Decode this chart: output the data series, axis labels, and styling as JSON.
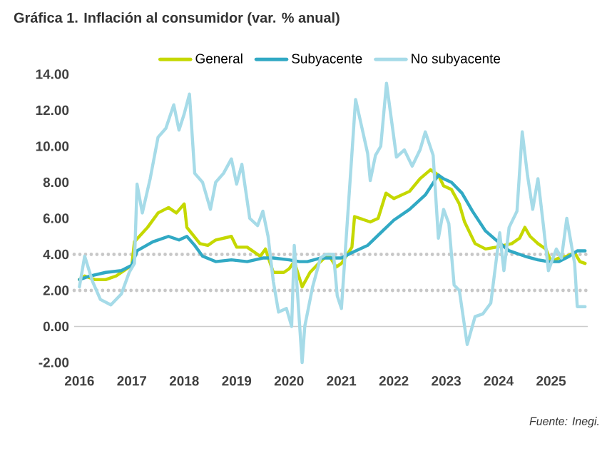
{
  "chart_data": {
    "type": "line",
    "title": "Gráfica 1. Inflación al consumidor (var. % anual)",
    "annotations": [
      "Fuente: Inegi."
    ],
    "legend": "top",
    "xlim": [
      2015.9,
      2025.7
    ],
    "xticks": [
      2016,
      2017,
      2018,
      2019,
      2020,
      2021,
      2022,
      2023,
      2024,
      2025
    ],
    "ylim": [
      -2,
      14
    ],
    "yticks": [
      {
        "value": -2,
        "label": "-2.00"
      },
      {
        "value": 0,
        "label": "0.00"
      },
      {
        "value": 2,
        "label": "2.00"
      },
      {
        "value": 4,
        "label": "4.00"
      },
      {
        "value": 6,
        "label": "6.00"
      },
      {
        "value": 8,
        "label": "8.00"
      },
      {
        "value": 10,
        "label": "10.00"
      },
      {
        "value": 12,
        "label": "12.00"
      },
      {
        "value": 14,
        "label": "14.00"
      }
    ],
    "ref_lines": [
      {
        "axis": "y",
        "value": 4,
        "color": "#c8c8c8",
        "line_style": "dotted"
      },
      {
        "axis": "y",
        "value": 2,
        "color": "#c8c8c8",
        "line_style": "dotted"
      }
    ],
    "series": [
      {
        "name": "General",
        "color": "#c5d800",
        "x": [
          2016.0,
          2016.1,
          2016.3,
          2016.5,
          2016.7,
          2016.9,
          2017.0,
          2017.05,
          2017.3,
          2017.5,
          2017.7,
          2017.85,
          2018.0,
          2018.05,
          2018.3,
          2018.45,
          2018.6,
          2018.9,
          2019.0,
          2019.2,
          2019.45,
          2019.55,
          2019.7,
          2019.9,
          2020.0,
          2020.1,
          2020.25,
          2020.4,
          2020.6,
          2020.75,
          2020.9,
          2021.0,
          2021.2,
          2021.25,
          2021.45,
          2021.55,
          2021.7,
          2021.85,
          2022.0,
          2022.3,
          2022.5,
          2022.7,
          2022.85,
          2022.95,
          2023.1,
          2023.25,
          2023.35,
          2023.55,
          2023.75,
          2023.95,
          2024.1,
          2024.25,
          2024.4,
          2024.5,
          2024.6,
          2024.75,
          2024.9,
          2025.0,
          2025.15,
          2025.3,
          2025.45,
          2025.55,
          2025.65
        ],
        "values": [
          2.6,
          2.8,
          2.6,
          2.6,
          2.8,
          3.2,
          3.4,
          4.7,
          5.5,
          6.3,
          6.6,
          6.3,
          6.8,
          5.5,
          4.6,
          4.5,
          4.8,
          5.0,
          4.4,
          4.4,
          3.9,
          4.3,
          3.0,
          3.0,
          3.2,
          3.6,
          2.2,
          3.0,
          3.6,
          4.0,
          3.3,
          3.5,
          4.4,
          6.1,
          5.9,
          5.8,
          6.0,
          7.4,
          7.1,
          7.5,
          8.2,
          8.7,
          8.4,
          7.8,
          7.6,
          6.8,
          5.8,
          4.6,
          4.3,
          4.4,
          4.5,
          4.6,
          4.9,
          5.5,
          5.0,
          4.6,
          4.3,
          3.6,
          3.8,
          3.9,
          4.1,
          3.6,
          3.5
        ]
      },
      {
        "name": "Subyacente",
        "color": "#31a9c4",
        "x": [
          2016.0,
          2016.2,
          2016.5,
          2016.8,
          2017.0,
          2017.1,
          2017.4,
          2017.7,
          2017.9,
          2018.05,
          2018.2,
          2018.35,
          2018.6,
          2018.9,
          2019.2,
          2019.5,
          2019.7,
          2020.0,
          2020.2,
          2020.35,
          2020.6,
          2020.8,
          2021.0,
          2021.2,
          2021.5,
          2021.75,
          2022.0,
          2022.3,
          2022.6,
          2022.85,
          2022.95,
          2023.1,
          2023.3,
          2023.5,
          2023.75,
          2023.95,
          2024.2,
          2024.5,
          2024.75,
          2024.95,
          2025.15,
          2025.35,
          2025.5,
          2025.65
        ],
        "values": [
          2.6,
          2.8,
          3.0,
          3.1,
          3.4,
          4.2,
          4.7,
          5.0,
          4.8,
          5.0,
          4.5,
          3.9,
          3.6,
          3.7,
          3.6,
          3.8,
          3.8,
          3.7,
          3.6,
          3.6,
          3.8,
          3.8,
          3.8,
          4.1,
          4.5,
          5.2,
          5.9,
          6.5,
          7.3,
          8.4,
          8.2,
          8.0,
          7.4,
          6.4,
          5.3,
          4.8,
          4.2,
          3.9,
          3.7,
          3.6,
          3.6,
          3.9,
          4.2,
          4.2
        ]
      },
      {
        "name": "No subyacente",
        "color": "#a6dbe8",
        "x": [
          2016.0,
          2016.1,
          2016.25,
          2016.4,
          2016.6,
          2016.8,
          2016.95,
          2017.05,
          2017.1,
          2017.2,
          2017.35,
          2017.5,
          2017.65,
          2017.8,
          2017.9,
          2018.0,
          2018.1,
          2018.2,
          2018.35,
          2018.5,
          2018.6,
          2018.75,
          2018.9,
          2019.0,
          2019.1,
          2019.25,
          2019.4,
          2019.5,
          2019.6,
          2019.7,
          2019.8,
          2019.95,
          2020.05,
          2020.1,
          2020.25,
          2020.3,
          2020.45,
          2020.6,
          2020.7,
          2020.85,
          2020.92,
          2021.0,
          2021.27,
          2021.5,
          2021.55,
          2021.65,
          2021.75,
          2021.86,
          2022.05,
          2022.2,
          2022.35,
          2022.5,
          2022.6,
          2022.75,
          2022.85,
          2022.95,
          2023.05,
          2023.15,
          2023.25,
          2023.4,
          2023.55,
          2023.7,
          2023.85,
          2024.02,
          2024.1,
          2024.2,
          2024.35,
          2024.45,
          2024.55,
          2024.65,
          2024.75,
          2024.85,
          2024.95,
          2025.1,
          2025.2,
          2025.3,
          2025.45,
          2025.5,
          2025.65
        ],
        "values": [
          2.2,
          3.9,
          2.5,
          1.5,
          1.2,
          1.8,
          3.0,
          3.5,
          7.9,
          6.3,
          8.2,
          10.5,
          11.0,
          12.3,
          10.9,
          11.8,
          12.9,
          8.5,
          8.0,
          6.5,
          8.0,
          8.5,
          9.3,
          7.9,
          9.0,
          6.0,
          5.6,
          6.4,
          5.0,
          2.5,
          0.8,
          1.0,
          0.0,
          4.5,
          -2.0,
          0.0,
          2.2,
          3.8,
          4.0,
          4.0,
          1.7,
          1.0,
          12.6,
          9.6,
          8.1,
          9.5,
          10.0,
          13.5,
          9.4,
          9.8,
          8.9,
          9.8,
          10.8,
          9.5,
          4.9,
          6.5,
          5.7,
          2.3,
          2.0,
          -1.0,
          0.55,
          0.7,
          1.3,
          5.2,
          3.1,
          5.5,
          6.4,
          10.8,
          8.4,
          6.5,
          8.2,
          5.7,
          3.1,
          4.3,
          3.8,
          6.0,
          3.5,
          1.1,
          1.1
        ]
      }
    ]
  }
}
